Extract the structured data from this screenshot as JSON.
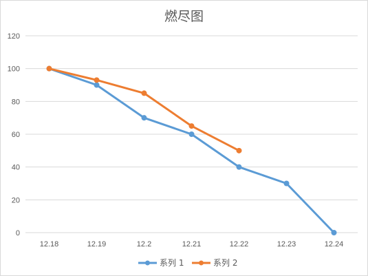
{
  "chart_data": {
    "type": "line",
    "title": "燃尽图",
    "categories": [
      "12.18",
      "12.19",
      "12.2",
      "12.21",
      "12.22",
      "12.23",
      "12.24"
    ],
    "ylim": [
      0,
      120
    ],
    "yticks": [
      0,
      20,
      40,
      60,
      80,
      100,
      120
    ],
    "grid": true,
    "legend_position": "bottom",
    "series": [
      {
        "name": "系列 1",
        "color": "#5b9bd5",
        "values": [
          100,
          90,
          70,
          60,
          40,
          30,
          0
        ]
      },
      {
        "name": "系列 2",
        "color": "#ed7d31",
        "values": [
          100,
          93,
          85,
          65,
          50,
          null,
          null
        ]
      }
    ]
  }
}
